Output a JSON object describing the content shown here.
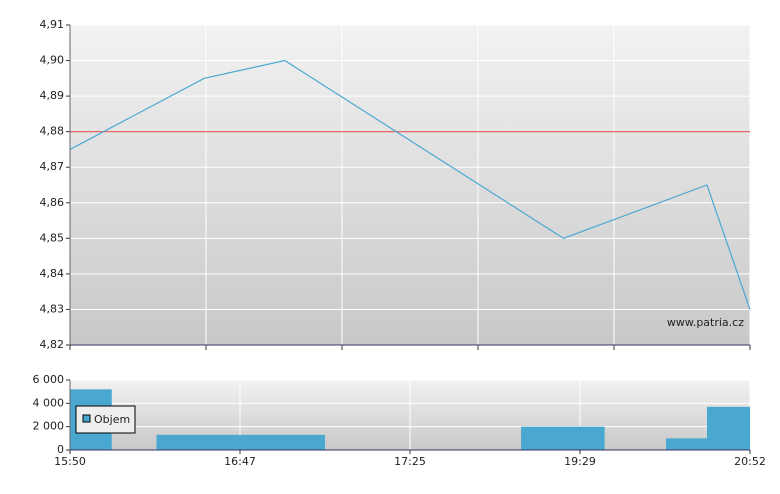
{
  "chart_data": [
    {
      "type": "line",
      "annotation": "www.patria.cz",
      "x": [
        "15:50",
        "16:35",
        "16:57",
        "19:17",
        "20:31",
        "20:52"
      ],
      "values": [
        4.875,
        4.895,
        4.9,
        4.85,
        4.865,
        4.83
      ],
      "color": "#4aa8d0",
      "reference_line": {
        "value": 4.88,
        "color": "#e05555"
      },
      "ylim": [
        4.82,
        4.91
      ],
      "yticks": [
        {
          "value": 4.82,
          "label": "4,82"
        },
        {
          "value": 4.83,
          "label": "4,83"
        },
        {
          "value": 4.84,
          "label": "4,84"
        },
        {
          "value": 4.85,
          "label": "4,85"
        },
        {
          "value": 4.86,
          "label": "4,86"
        },
        {
          "value": 4.87,
          "label": "4,87"
        },
        {
          "value": 4.88,
          "label": "4,88"
        },
        {
          "value": 4.89,
          "label": "4,89"
        },
        {
          "value": 4.9,
          "label": "4,90"
        },
        {
          "value": 4.91,
          "label": "4,91"
        }
      ],
      "grid": true
    },
    {
      "type": "bar",
      "series": [
        {
          "name": "Objem",
          "color": "#4aa8d0",
          "x_start": [
            "15:50",
            "16:19",
            "18:46",
            "20:11",
            "20:31"
          ],
          "x_end": [
            "16:04",
            "17:06",
            "19:41",
            "20:31",
            "20:52"
          ],
          "values": [
            5200,
            1300,
            2000,
            1000,
            3700
          ]
        }
      ],
      "xticks": [
        "15:50",
        "16:47",
        "17:25",
        "19:29",
        "20:52"
      ],
      "ylim": [
        0,
        6000
      ],
      "yticks": [
        0,
        {
          "value": 2000,
          "label": "2 000"
        },
        {
          "value": 4000,
          "label": "4 000"
        },
        {
          "value": 6000,
          "label": "6 000"
        }
      ],
      "grid": true,
      "legend": "upper-left"
    }
  ]
}
